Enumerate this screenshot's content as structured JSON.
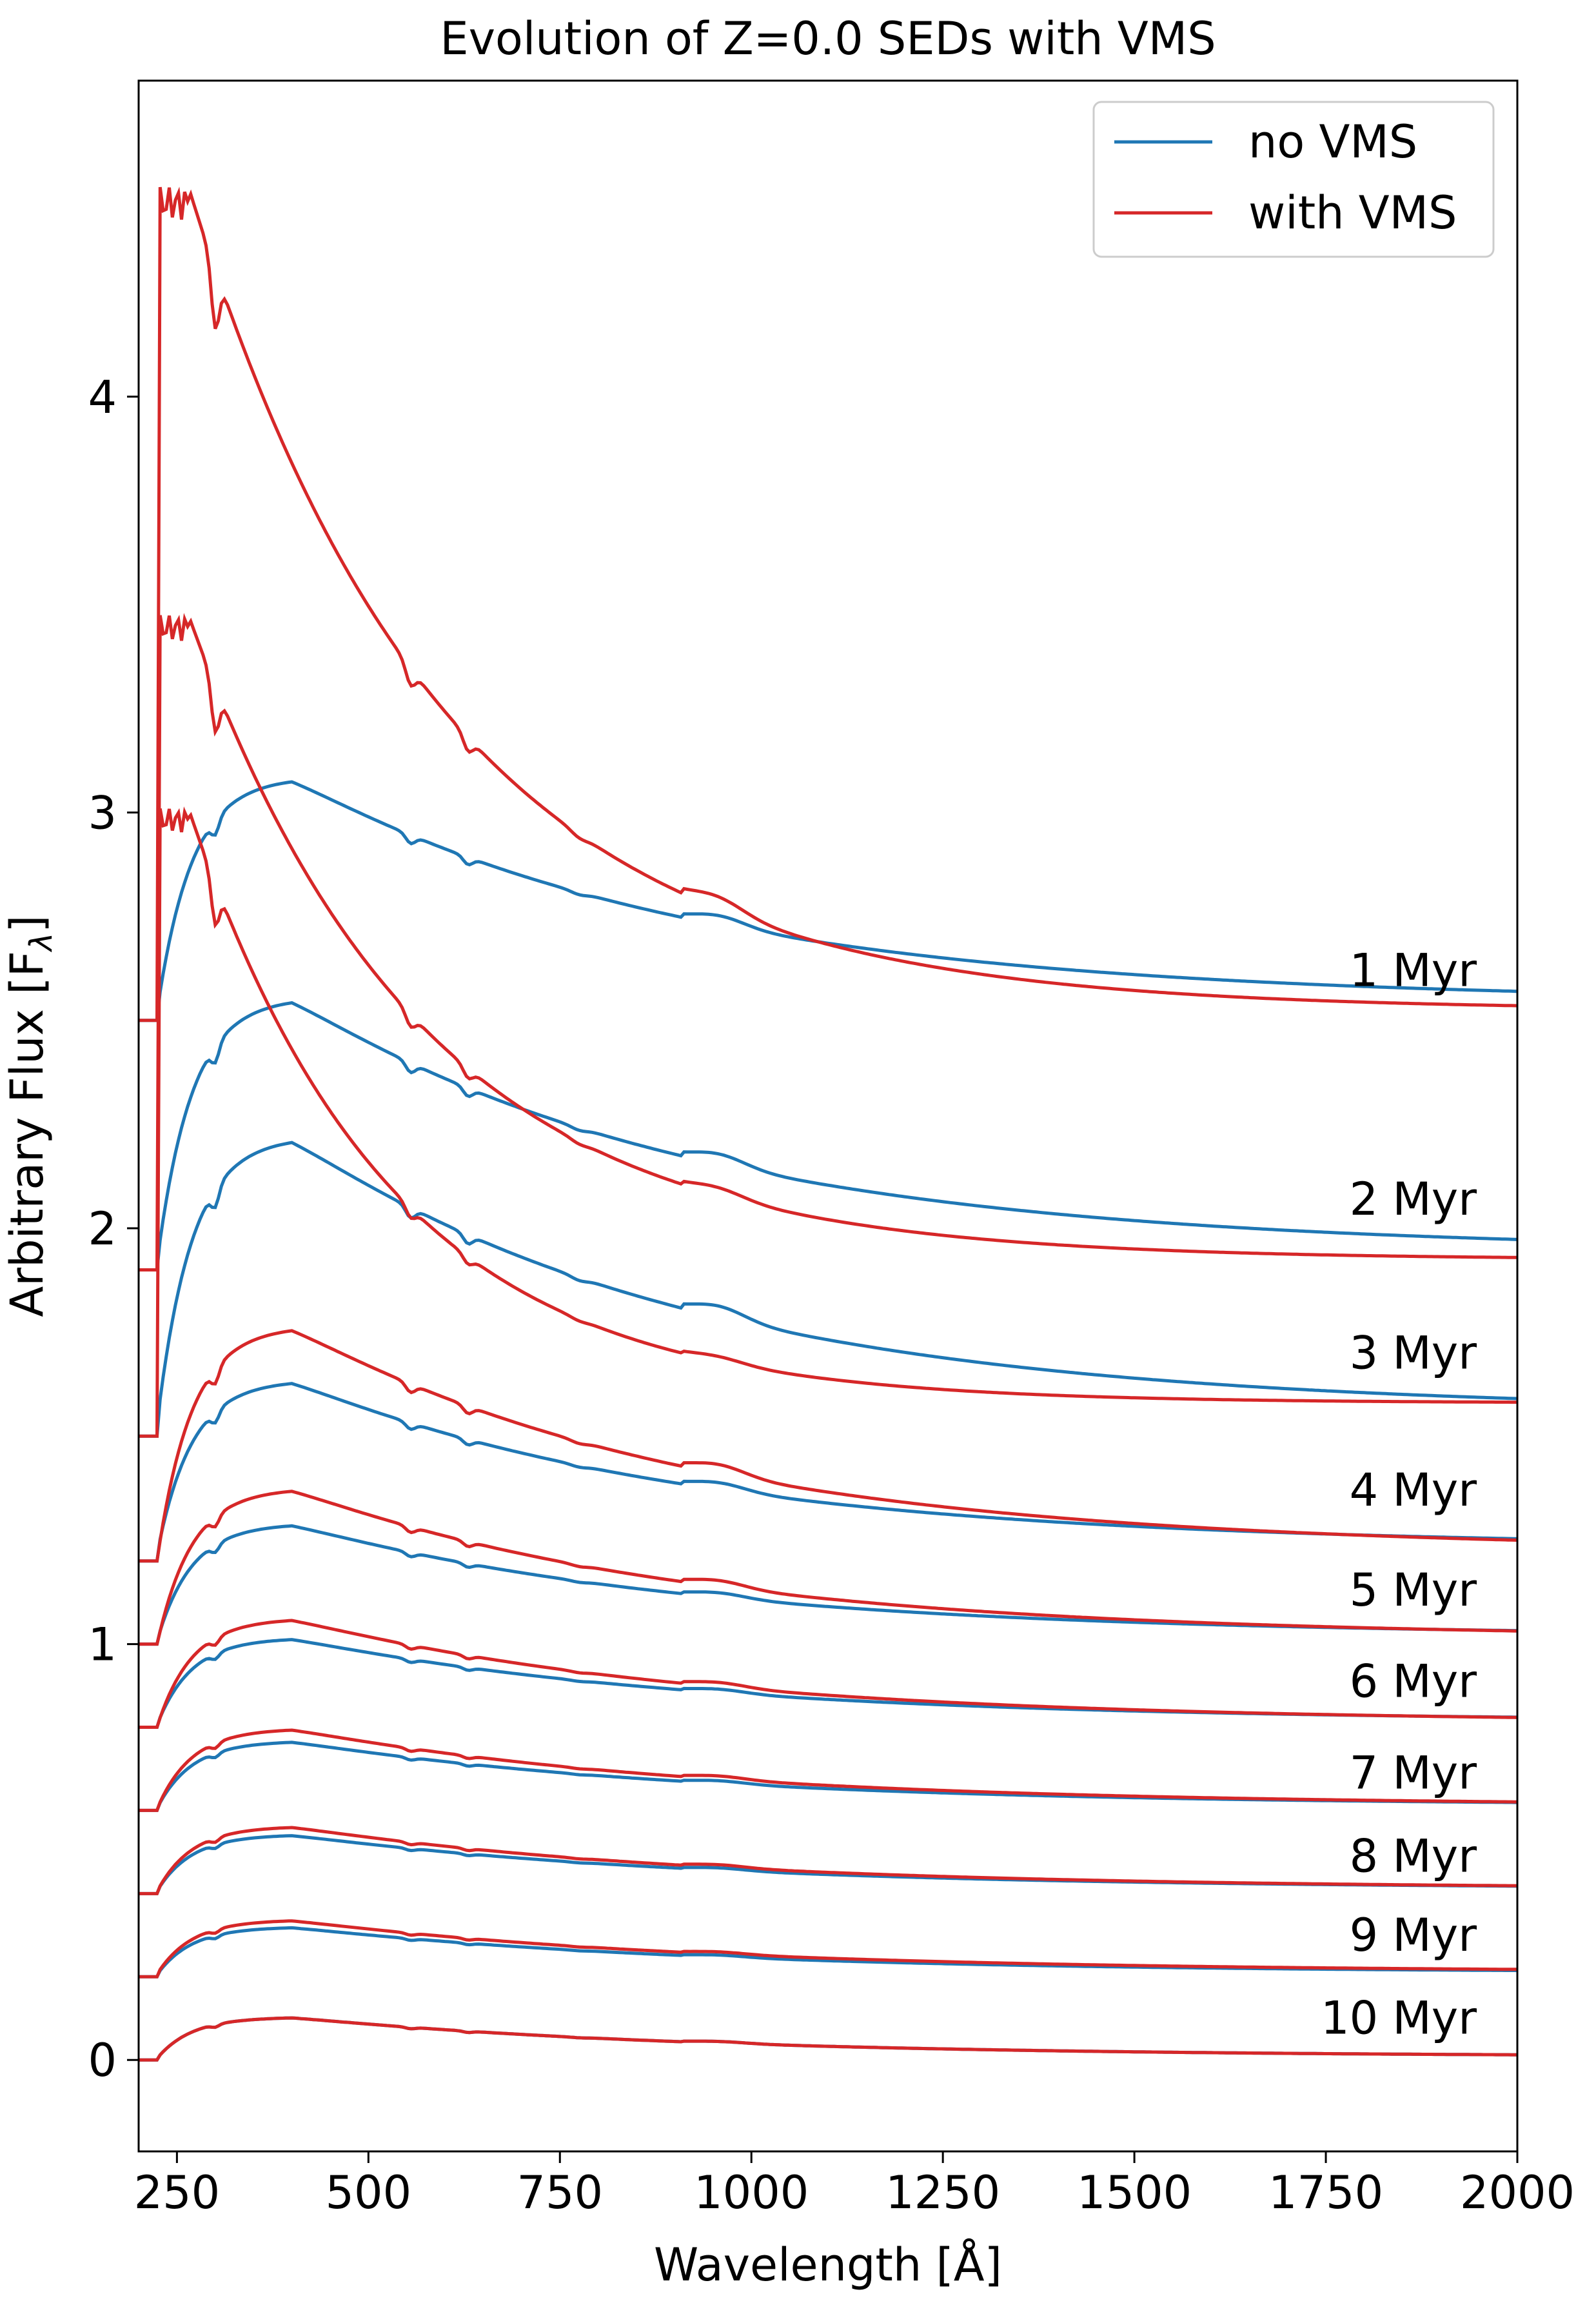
{
  "chart_data": {
    "type": "line",
    "title": "Evolution of Z=0.0 SEDs with VMS",
    "xlabel": "Wavelength [Å]",
    "ylabel": "Arbitrary Flux [F",
    "ylabel_sub": "λ",
    "ylabel_close": "]",
    "xlim": [
      200,
      2000
    ],
    "ylim": [
      -0.22,
      4.76
    ],
    "xticks": [
      250,
      500,
      750,
      1000,
      1250,
      1500,
      1750,
      2000
    ],
    "yticks": [
      0,
      1,
      2,
      3,
      4
    ],
    "grid": false,
    "legend": {
      "placement": "top-right",
      "entries": [
        {
          "label": "no VMS",
          "color": "#1f77b4"
        },
        {
          "label": "with VMS",
          "color": "#d62728"
        }
      ]
    },
    "colors": {
      "no_vms": "#1f77b4",
      "with_vms": "#d62728"
    },
    "ages": [
      {
        "label": "1 Myr",
        "offset": 2.5,
        "no_vms_amp": 0.54,
        "with_vms_amp": 1.98,
        "no_vms_tail": 0.045,
        "with_vms_tail": 0.025
      },
      {
        "label": "2 Myr",
        "offset": 1.9,
        "no_vms_amp": 0.61,
        "with_vms_amp": 1.55,
        "no_vms_tail": 0.045,
        "with_vms_tail": 0.025
      },
      {
        "label": "3 Myr",
        "offset": 1.5,
        "no_vms_amp": 0.66,
        "with_vms_amp": 1.43,
        "no_vms_tail": 0.06,
        "with_vms_tail": 0.08
      },
      {
        "label": "4 Myr",
        "offset": 1.2,
        "no_vms_amp": 0.4,
        "with_vms_amp": 0.54,
        "no_vms_tail": 0.035,
        "with_vms_tail": 0.025
      },
      {
        "label": "5 Myr",
        "offset": 1.0,
        "no_vms_amp": 0.27,
        "with_vms_amp": 0.36,
        "no_vms_tail": 0.02,
        "with_vms_tail": 0.015
      },
      {
        "label": "6 Myr",
        "offset": 0.8,
        "no_vms_amp": 0.2,
        "with_vms_amp": 0.25,
        "no_vms_tail": 0.015,
        "with_vms_tail": 0.012
      },
      {
        "label": "7 Myr",
        "offset": 0.6,
        "no_vms_amp": 0.155,
        "with_vms_amp": 0.185,
        "no_vms_tail": 0.012,
        "with_vms_tail": 0.012
      },
      {
        "label": "8 Myr",
        "offset": 0.4,
        "no_vms_amp": 0.13,
        "with_vms_amp": 0.15,
        "no_vms_tail": 0.012,
        "with_vms_tail": 0.012
      },
      {
        "label": "9 Myr",
        "offset": 0.2,
        "no_vms_amp": 0.11,
        "with_vms_amp": 0.125,
        "no_vms_tail": 0.01,
        "with_vms_tail": 0.012
      },
      {
        "label": "10 Myr",
        "offset": 0.0,
        "no_vms_amp": 0.095,
        "with_vms_amp": 0.095,
        "no_vms_tail": 0.008,
        "with_vms_tail": 0.008
      }
    ]
  }
}
